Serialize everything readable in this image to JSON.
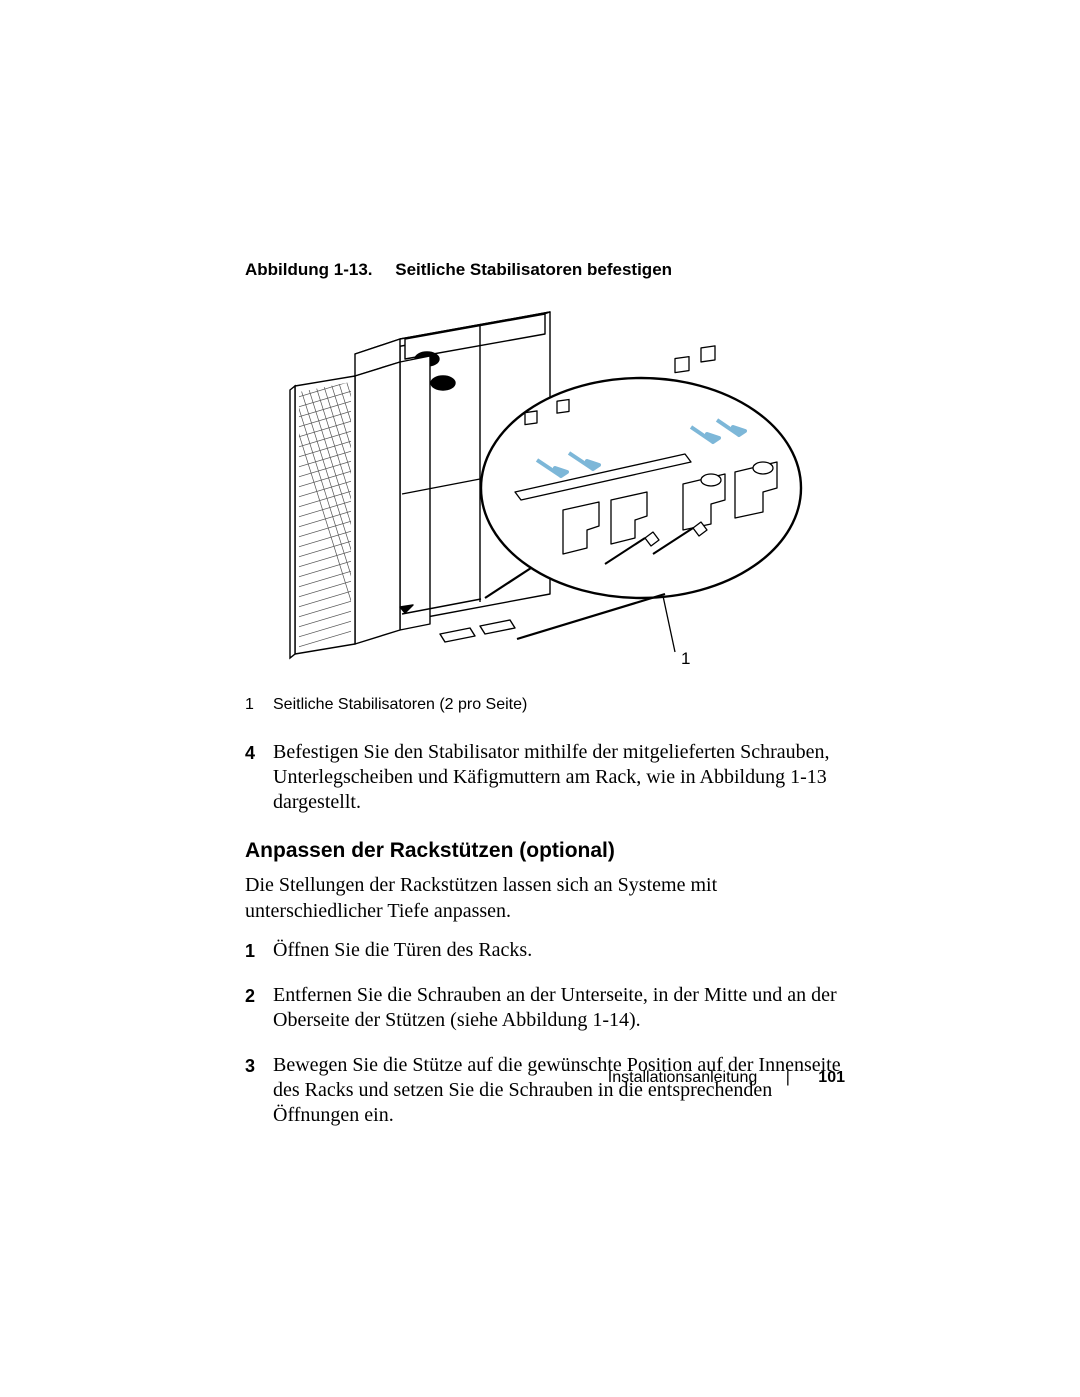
{
  "figure": {
    "label": "Abbildung 1-13.",
    "title": "Seitliche Stabilisatoren befestigen",
    "callout_number": "1",
    "svg": {
      "stroke": "#000000",
      "stroke_thin": 1.3,
      "stroke_thick": 2.2,
      "fill_face": "#ffffff",
      "mesh_color": "#555555",
      "cap_fill": "#000000",
      "arrow_color": "#7db7d8"
    }
  },
  "legend": {
    "idx": "1",
    "text": "Seitliche Stabilisatoren (2 pro Seite)"
  },
  "step4": {
    "idx": "4",
    "text": "Befestigen Sie den Stabilisator mithilfe der mitgelieferten Schrauben, Unterlegscheiben und Käfigmuttern am Rack, wie in Abbildung 1-13 dargestellt."
  },
  "section": {
    "heading": "Anpassen der Rackstützen (optional)",
    "intro": "Die Stellungen der Rackstützen lassen sich an Systeme mit unterschiedlicher Tiefe anpassen."
  },
  "steps": [
    {
      "idx": "1",
      "text": "Öffnen Sie die Türen des Racks."
    },
    {
      "idx": "2",
      "text": "Entfernen Sie die Schrauben an der Unterseite, in der Mitte und an der Oberseite der Stützen (siehe Abbildung 1-14)."
    },
    {
      "idx": "3",
      "text": "Bewegen Sie die Stütze auf die gewünschte Position auf der Innenseite des Racks und setzen Sie die Schrauben in die entsprechenden Öffnungen ein."
    }
  ],
  "footer": {
    "doc": "Installationsanleitung",
    "page": "101"
  }
}
